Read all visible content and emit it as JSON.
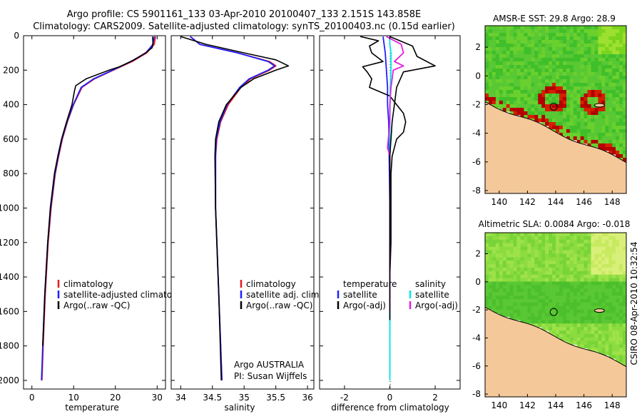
{
  "header": {
    "line1": "Argo profile: CS 5901161_133 03-Apr-2010 20100407_133 2.151S 143.858E",
    "line2": "Climatology: CARS2009. Satellite-adjusted climatology: synTS_20100403.nc (0.15d earlier)"
  },
  "credits": {
    "argo": "Argo AUSTRALIA",
    "pi": "PI: Susan Wijffels",
    "stamp": "CSIRO 08-Apr-2010 10:32:54"
  },
  "colors": {
    "climatology": "#e41a1c",
    "satellite": "#1f1fff",
    "argo": "#000000",
    "sat_diff": "#00e5ee",
    "sal_argo_diff": "#e020e0",
    "land": "#f5c89a"
  },
  "chart_data": [
    {
      "type": "line",
      "id": "temperature",
      "xlabel": "temperature",
      "ylabel": "",
      "xlim": [
        -2,
        32
      ],
      "ylim": [
        2050,
        0
      ],
      "x_ticks": [
        0,
        10,
        20,
        30
      ],
      "y_ticks": [
        0,
        200,
        400,
        600,
        800,
        1000,
        1200,
        1400,
        1600,
        1800,
        2000
      ],
      "legend": [
        "climatology",
        "satellite-adjusted climatology",
        "Argo(..raw -QC)"
      ],
      "series": [
        {
          "name": "climatology",
          "color": "#e41a1c",
          "depth": [
            5,
            50,
            100,
            150,
            200,
            250,
            300,
            400,
            500,
            600,
            700,
            800,
            1000,
            1200,
            1500,
            1800,
            2000
          ],
          "values": [
            29.6,
            29.3,
            27.5,
            24,
            19.5,
            15,
            12,
            10,
            8.5,
            7.3,
            6.4,
            5.6,
            4.6,
            3.9,
            3.2,
            2.7,
            2.4
          ]
        },
        {
          "name": "satellite-adjusted climatology",
          "color": "#1f1fff",
          "depth": [
            5,
            50,
            100,
            150,
            200,
            250,
            300,
            400,
            500,
            600,
            700,
            800,
            1000,
            1200,
            1500,
            1800,
            2000
          ],
          "values": [
            29.3,
            29.0,
            27.3,
            23.7,
            19.3,
            14.8,
            11.8,
            9.9,
            8.4,
            7.2,
            6.3,
            5.5,
            4.5,
            3.8,
            3.1,
            2.6,
            2.3
          ]
        },
        {
          "name": "Argo(..raw -QC)",
          "color": "#000000",
          "depth": [
            5,
            40,
            70,
            100,
            140,
            180,
            200,
            250,
            290,
            320,
            400,
            500,
            600,
            700,
            800,
            1000,
            1200,
            1500,
            1800
          ],
          "values": [
            28.9,
            29.0,
            28.8,
            27.2,
            24.5,
            21.0,
            18.5,
            13.0,
            10.5,
            10.2,
            9.6,
            8.3,
            7.1,
            6.2,
            5.4,
            4.4,
            3.8,
            3.1,
            2.6
          ]
        }
      ]
    },
    {
      "type": "line",
      "id": "salinity",
      "xlabel": "salinity",
      "ylabel": "",
      "xlim": [
        33.85,
        36.1
      ],
      "ylim": [
        2050,
        0
      ],
      "x_ticks": [
        34,
        34.5,
        35,
        35.5,
        36
      ],
      "legend": [
        "climatology",
        "satellite adj. clim.",
        "Argo(..raw -QC)"
      ],
      "series": [
        {
          "name": "climatology",
          "color": "#e41a1c",
          "depth": [
            5,
            50,
            100,
            150,
            175,
            200,
            250,
            300,
            400,
            500,
            600,
            700,
            1000,
            1500,
            2000
          ],
          "values": [
            34.15,
            34.3,
            34.9,
            35.4,
            35.5,
            35.4,
            35.1,
            34.95,
            34.75,
            34.63,
            34.57,
            34.55,
            34.55,
            34.6,
            34.65
          ]
        },
        {
          "name": "satellite adj. clim.",
          "color": "#1f1fff",
          "depth": [
            5,
            50,
            100,
            150,
            175,
            200,
            250,
            300,
            400,
            500,
            600,
            700,
            1000,
            1500,
            2000
          ],
          "values": [
            34.15,
            34.3,
            34.9,
            35.38,
            35.48,
            35.38,
            35.08,
            34.93,
            34.73,
            34.62,
            34.56,
            34.55,
            34.55,
            34.6,
            34.65
          ]
        },
        {
          "name": "Argo(..raw -QC)",
          "color": "#000000",
          "depth": [
            5,
            50,
            100,
            140,
            175,
            200,
            250,
            300,
            400,
            500,
            600,
            700,
            1000,
            1500,
            2000
          ],
          "values": [
            34.0,
            34.4,
            35.0,
            35.5,
            35.7,
            35.5,
            35.15,
            34.95,
            34.72,
            34.6,
            34.55,
            34.54,
            34.55,
            34.6,
            34.64
          ]
        }
      ]
    },
    {
      "type": "line",
      "id": "difference",
      "xlabel": "difference from climatology",
      "ylabel": "",
      "xlim": [
        -3.1,
        3.1
      ],
      "ylim": [
        2050,
        0
      ],
      "x_ticks": [
        -2,
        0,
        2
      ],
      "legend": [
        "temperature",
        "satellite",
        "Argo(-adj)",
        "salinity",
        "satellite",
        "Argo(-adj)"
      ],
      "series": [
        {
          "name": "satellite",
          "group": "temperature",
          "color": "#1f1fff",
          "depth": [
            5,
            100,
            200,
            300,
            400,
            500,
            1000,
            1500,
            1650
          ],
          "values": [
            -0.3,
            -0.2,
            -0.15,
            -0.1,
            -0.1,
            -0.05,
            0.0,
            0.0,
            0.0
          ]
        },
        {
          "name": "Argo(-adj)",
          "group": "temperature",
          "color": "#000000",
          "depth": [
            5,
            30,
            60,
            100,
            150,
            180,
            210,
            250,
            300,
            350,
            400,
            450,
            500,
            560,
            600,
            700,
            800,
            1000,
            1200,
            1400,
            1550,
            1600
          ],
          "values": [
            -1.3,
            -0.5,
            -0.9,
            -0.8,
            -0.3,
            -1.2,
            -1.0,
            -0.8,
            -0.9,
            0.0,
            0.3,
            0.6,
            0.7,
            0.6,
            0.3,
            0.1,
            0.05,
            0.05,
            0.05,
            0.0,
            0.0,
            0.0
          ]
        },
        {
          "name": "satellite",
          "group": "salinity",
          "color": "#00e5ee",
          "depth": [
            5,
            50,
            100,
            200,
            300,
            500,
            1000,
            1500,
            2000
          ],
          "values": [
            0.0,
            0.0,
            0.05,
            0.05,
            0.02,
            0.0,
            0.0,
            0.0,
            0.0
          ]
        },
        {
          "name": "Argo(-adj)",
          "group": "salinity",
          "color": "#e020e0",
          "depth": [
            5,
            50,
            100,
            150,
            175,
            200,
            250,
            300,
            400,
            500,
            650,
            700,
            1000,
            1500,
            1600
          ],
          "values": [
            -0.15,
            0.5,
            0.6,
            0.2,
            0.6,
            0.15,
            0.1,
            0.05,
            0.0,
            0.0,
            -0.1,
            0.0,
            0.0,
            0.0,
            0.0
          ]
        },
        {
          "name": "Argo(-adj)",
          "group": "salinity",
          "color": "#000000",
          "depth": [
            5,
            60,
            120,
            175,
            210,
            300,
            400,
            500,
            600,
            700,
            1000,
            1500,
            1650
          ],
          "values": [
            0.0,
            1.0,
            1.2,
            2.0,
            0.6,
            0.3,
            0.2,
            0.1,
            0.05,
            0.0,
            0.0,
            0.0,
            0.0
          ]
        }
      ]
    },
    {
      "type": "heatmap",
      "id": "sst_map",
      "title": "AMSR-E SST: 29.8 Argo: 28.9",
      "xlim": [
        139,
        149
      ],
      "ylim": [
        -8.2,
        3.5
      ],
      "x_ticks": [
        140,
        142,
        144,
        146,
        148
      ],
      "y_ticks": [
        -8,
        -6,
        -4,
        -2,
        0,
        2
      ],
      "float_position": {
        "lon": 143.858,
        "lat": -2.151
      }
    },
    {
      "type": "heatmap",
      "id": "sla_map",
      "title": "Altimetric SLA: 0.0084 Argo: -0.018",
      "xlim": [
        139,
        149
      ],
      "ylim": [
        -8.2,
        3.5
      ],
      "x_ticks": [
        140,
        142,
        144,
        146,
        148
      ],
      "y_ticks": [
        -8,
        -6,
        -4,
        -2,
        0,
        2
      ],
      "float_position": {
        "lon": 143.858,
        "lat": -2.151
      }
    }
  ]
}
